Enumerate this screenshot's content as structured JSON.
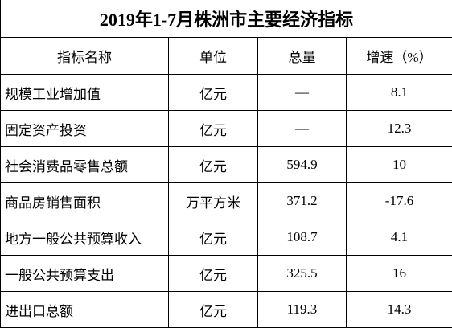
{
  "title": "2019年1-7月株洲市主要经济指标",
  "table": {
    "header": [
      "指标名称",
      "单位",
      "总量",
      "增速（%）"
    ],
    "rows": [
      [
        "规模工业增加值",
        "亿元",
        "—",
        "8.1"
      ],
      [
        "固定资产投资",
        "亿元",
        "—",
        "12.3"
      ],
      [
        "社会消费品零售总额",
        "亿元",
        "594.9",
        "10"
      ],
      [
        "商品房销售面积",
        "万平方米",
        "371.2",
        "-17.6"
      ],
      [
        "地方一般公共预算收入",
        "亿元",
        "108.7",
        "4.1"
      ],
      [
        "一般公共预算支出",
        "亿元",
        "325.5",
        "16"
      ],
      [
        "进出口总额",
        "亿元",
        "119.3",
        "14.3"
      ]
    ]
  }
}
